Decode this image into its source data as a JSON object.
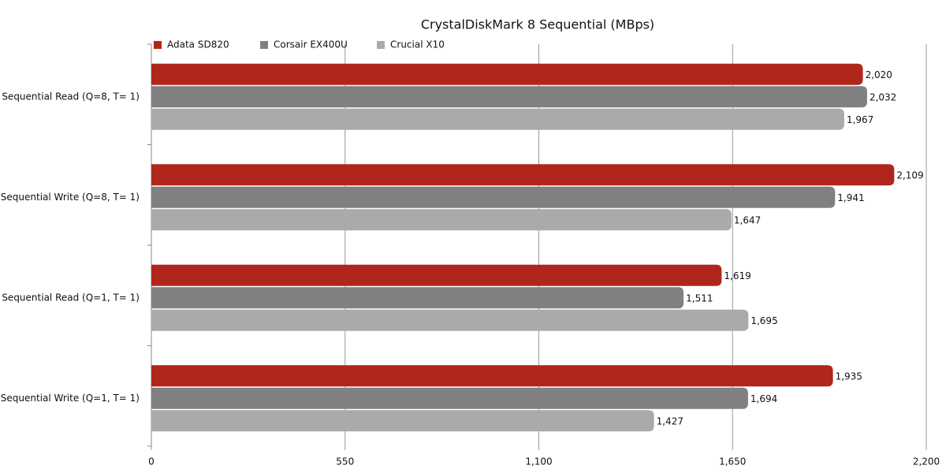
{
  "chart_data": {
    "type": "bar",
    "orientation": "horizontal",
    "title": "CrystalDiskMark 8 Sequential (MBps)",
    "categories": [
      "Sequential Read (Q=8, T= 1)",
      "Sequential Write (Q=8, T= 1)",
      "Sequential Read (Q=1, T= 1)",
      "Sequential Write (Q=1, T= 1)"
    ],
    "series": [
      {
        "name": "Adata SD820",
        "color": "#b0261c",
        "values": [
          2020,
          2109,
          1619,
          1935
        ],
        "value_labels": [
          "2,020",
          "2,109",
          "1,619",
          "1,935"
        ]
      },
      {
        "name": "Corsair EX400U",
        "color": "#808080",
        "values": [
          2032,
          1941,
          1511,
          1694
        ],
        "value_labels": [
          "2,032",
          "1,941",
          "1,511",
          "1,694"
        ]
      },
      {
        "name": "Crucial X10",
        "color": "#aaaaaa",
        "values": [
          1967,
          1647,
          1695,
          1427
        ],
        "value_labels": [
          "1,967",
          "1,647",
          "1,695",
          "1,427"
        ]
      }
    ],
    "xlim": [
      0,
      2200
    ],
    "xticks": [
      0,
      550,
      {
        "value": 1100,
        "label": "1,100"
      },
      {
        "value": 1650,
        "label": "1,650"
      },
      {
        "value": 2200,
        "label": "2,200"
      }
    ],
    "grid": true,
    "legend": "top-left"
  }
}
